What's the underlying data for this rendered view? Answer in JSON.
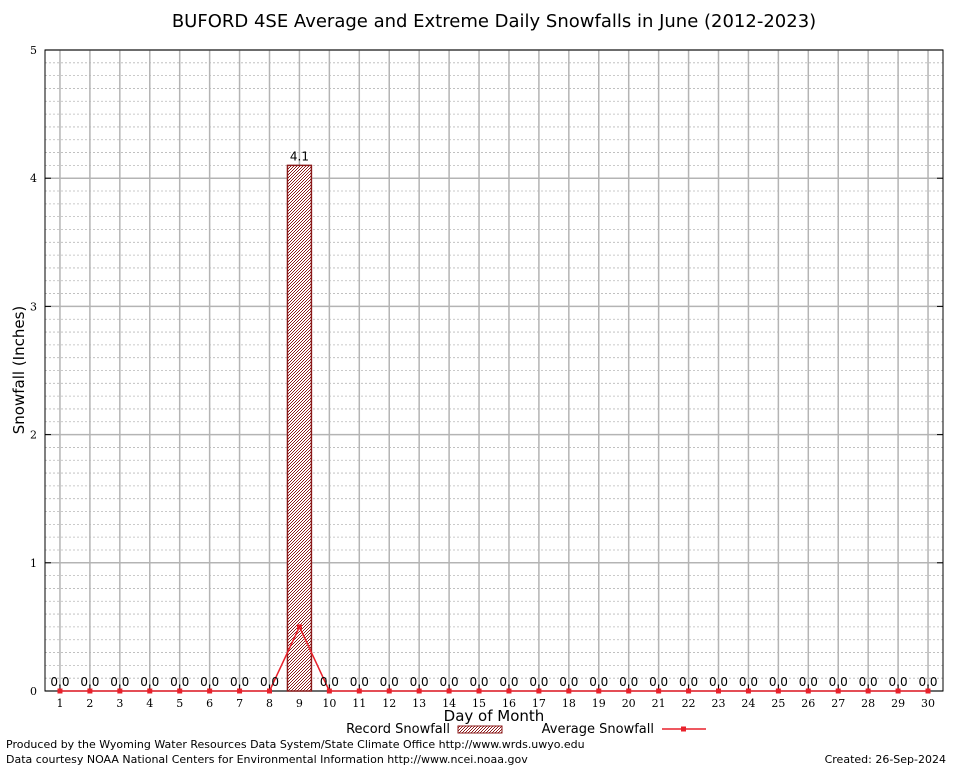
{
  "chart_data": {
    "type": "bar",
    "title": "BUFORD 4SE Average and Extreme Daily Snowfalls in June (2012-2023)",
    "xlabel": "Day of Month",
    "ylabel": "Snowfall (Inches)",
    "ylim": [
      0,
      5
    ],
    "yticks": [
      "0",
      "1",
      "2",
      "3",
      "4",
      "5"
    ],
    "categories": [
      "1",
      "2",
      "3",
      "4",
      "5",
      "6",
      "7",
      "8",
      "9",
      "10",
      "11",
      "12",
      "13",
      "14",
      "15",
      "16",
      "17",
      "18",
      "19",
      "20",
      "21",
      "22",
      "23",
      "24",
      "25",
      "26",
      "27",
      "28",
      "29",
      "30"
    ],
    "series": [
      {
        "name": "Record Snowfall",
        "kind": "bar",
        "values": [
          0,
          0,
          0,
          0,
          0,
          0,
          0,
          0,
          4.1,
          0,
          0,
          0,
          0,
          0,
          0,
          0,
          0,
          0,
          0,
          0,
          0,
          0,
          0,
          0,
          0,
          0,
          0,
          0,
          0,
          0
        ],
        "labels": [
          "0.0",
          "0.0",
          "0.0",
          "0.0",
          "0.0",
          "0.0",
          "0.0",
          "0.0",
          "4.1",
          "0.0",
          "0.0",
          "0.0",
          "0.0",
          "0.0",
          "0.0",
          "0.0",
          "0.0",
          "0.0",
          "0.0",
          "0.0",
          "0.0",
          "0.0",
          "0.0",
          "0.0",
          "0.0",
          "0.0",
          "0.0",
          "0.0",
          "0.0",
          "0.0"
        ],
        "color": "#8b1a1a"
      },
      {
        "name": "Average Snowfall",
        "kind": "line",
        "values": [
          0,
          0,
          0,
          0,
          0,
          0,
          0,
          0,
          0.5,
          0,
          0,
          0,
          0,
          0,
          0,
          0,
          0,
          0,
          0,
          0,
          0,
          0,
          0,
          0,
          0,
          0,
          0,
          0,
          0,
          0
        ],
        "color": "#e8212b"
      }
    ],
    "grid": true,
    "legend": "bottom"
  },
  "footer": {
    "line1": "Produced by the Wyoming Water Resources Data System/State Climate Office http://www.wrds.uwyo.edu",
    "line2": "Data courtesy NOAA National Centers for Environmental Information http://www.ncei.noaa.gov",
    "created": "Created: 26-Sep-2024"
  }
}
